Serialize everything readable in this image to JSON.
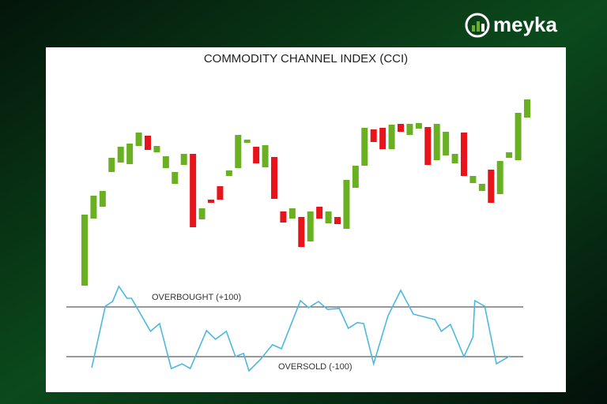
{
  "brand": "meyka",
  "chart_data": [
    {
      "type": "candlestick",
      "title": "COMMODITY CHANNEL INDEX (CCI)",
      "up_color": "#6ab023",
      "down_color": "#e8141b",
      "open": [
        3.2,
        37.2,
        43.2,
        60.8,
        65.6,
        64.8,
        74,
        79.2,
        70.8,
        62.8,
        54.8,
        64.4,
        70,
        36.8,
        46.8,
        53.6,
        58.8,
        62.8,
        75.6,
        73.6,
        63.2,
        68.4,
        40.8,
        37.2,
        38,
        25.6,
        43.2,
        34.8,
        38,
        32,
        52.8,
        64,
        82.4,
        83.2,
        72.4,
        85.2,
        79.6,
        82.8,
        83.6,
        66.8,
        69.2,
        65.2,
        80.8,
        55.2,
        51.2,
        62,
        49.6,
        68,
        66.8,
        88.4
      ],
      "close": [
        39.2,
        48.8,
        51.2,
        68,
        73.6,
        75.2,
        80.8,
        72,
        74,
        68.8,
        60.8,
        70,
        32.8,
        42.4,
        45.2,
        46.8,
        61.6,
        79.6,
        77.2,
        65.2,
        74.4,
        47.2,
        35.2,
        42.4,
        22.8,
        40.8,
        37.2,
        40.8,
        34.4,
        56.8,
        64,
        83.2,
        76,
        72.4,
        84.8,
        81.2,
        85.2,
        85.6,
        64.4,
        85.2,
        81.2,
        70,
        58.8,
        58.8,
        54.8,
        45.2,
        66.4,
        70.8,
        90.8,
        97.6
      ]
    },
    {
      "type": "line",
      "color": "#4cb8e0",
      "x": [
        0.8,
        2.3,
        3.1,
        3.8,
        4.7,
        5.2,
        7.3,
        8.3,
        9.6,
        10.8,
        11.7,
        13.5,
        14.5,
        15.7,
        16.7,
        17.6,
        18.2,
        19.5,
        20.8,
        21.8,
        23.9,
        24.8,
        25.9,
        26.9,
        28.2,
        29.2,
        30.2,
        30.9,
        32.0,
        33.6,
        35.0,
        36.4,
        38.8,
        39.5,
        40.5,
        42.0,
        43.0,
        43.2,
        44.3,
        45.6,
        47.1
      ],
      "values": [
        -144,
        103,
        122,
        183,
        135,
        135,
        2,
        33,
        -148,
        -129,
        -148,
        5,
        -30,
        2,
        -100,
        -87,
        -157,
        -110,
        -52,
        -68,
        125,
        97,
        122,
        90,
        94,
        14,
        37,
        33,
        -129,
        65,
        167,
        71,
        49,
        2,
        30,
        -100,
        -21,
        125,
        103,
        -129,
        -97
      ],
      "reference_lines": [
        {
          "value": 100,
          "label": "OVERBOUGHT (+100)"
        },
        {
          "value": -100,
          "label": "OVERSOLD (-100)"
        }
      ]
    }
  ]
}
